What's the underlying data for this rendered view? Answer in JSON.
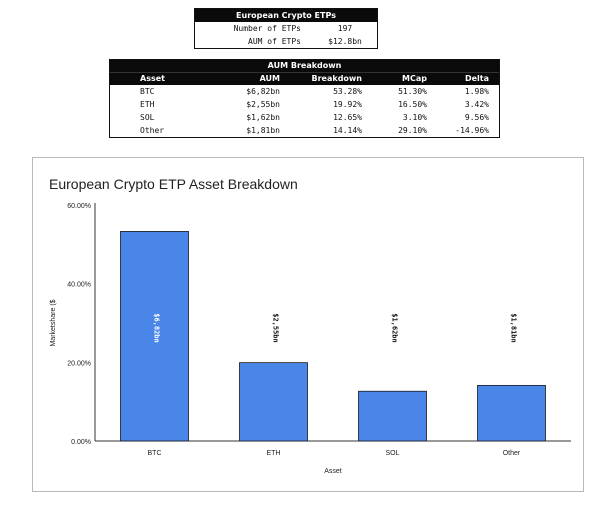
{
  "summary": {
    "title": "European Crypto ETPs",
    "rows": [
      {
        "label": "Number of ETPs",
        "value": "197"
      },
      {
        "label": "AUM of ETPs",
        "value": "$12.8bn"
      }
    ]
  },
  "aum_table": {
    "title": "AUM Breakdown",
    "columns": [
      "Asset",
      "AUM",
      "Breakdown",
      "MCap",
      "Delta"
    ],
    "rows": [
      [
        "BTC",
        "$6,82bn",
        "53.28%",
        "51.30%",
        "1.98%"
      ],
      [
        "ETH",
        "$2,55bn",
        "19.92%",
        "16.50%",
        "3.42%"
      ],
      [
        "SOL",
        "$1,62bn",
        "12.65%",
        "3.10%",
        "9.56%"
      ],
      [
        "Other",
        "$1,81bn",
        "14.14%",
        "29.10%",
        "-14.96%"
      ]
    ]
  },
  "chart_data": {
    "type": "bar",
    "title": "European Crypto ETP Asset Breakdown",
    "xlabel": "Asset",
    "ylabel": "Marketshare ($",
    "categories": [
      "BTC",
      "ETH",
      "SOL",
      "Other"
    ],
    "values": [
      53.28,
      19.92,
      12.65,
      14.14
    ],
    "data_labels": [
      "$6,82bn",
      "$2,55bn",
      "$1,62bn",
      "$1,81bn"
    ],
    "yticks": [
      "0.00%",
      "20.00%",
      "40.00%",
      "60.00%"
    ],
    "ylim": [
      0,
      60
    ],
    "grid": false,
    "bar_color": "#4a86e8"
  }
}
